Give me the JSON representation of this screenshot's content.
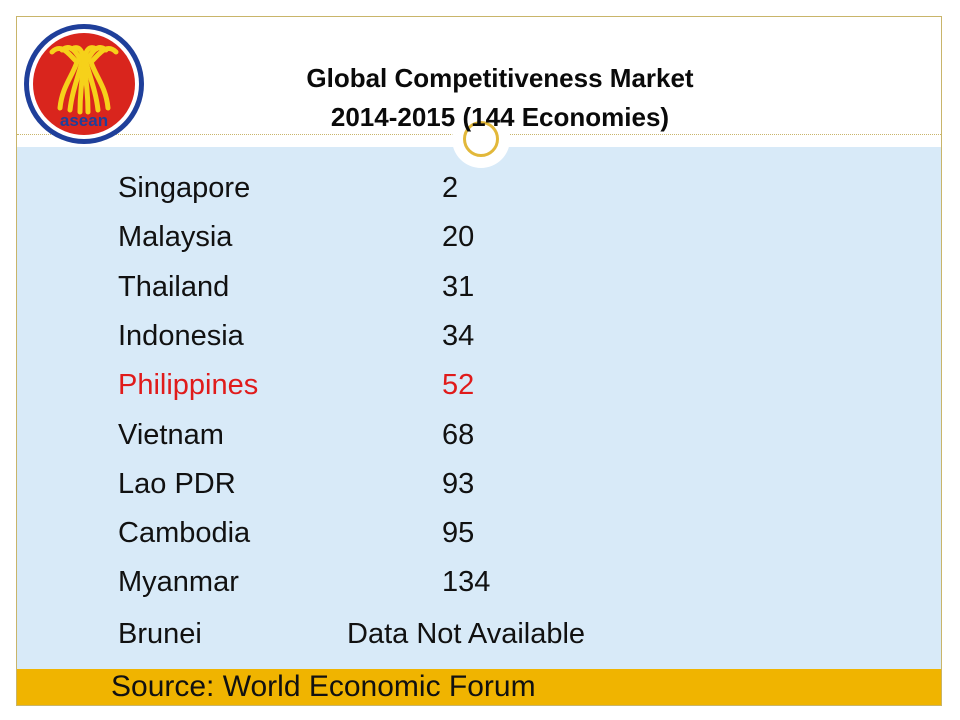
{
  "title": {
    "line1": "Global Competitiveness Market",
    "line2": "2014-2015   (144 Economies)"
  },
  "logo": {
    "text": "asean",
    "icon": "asean-logo"
  },
  "rankings": [
    {
      "country": "Singapore",
      "rank": "2",
      "highlight": false
    },
    {
      "country": "Malaysia",
      "rank": "20",
      "highlight": false
    },
    {
      "country": "Thailand",
      "rank": "31",
      "highlight": false
    },
    {
      "country": "Indonesia",
      "rank": "34",
      "highlight": false
    },
    {
      "country": "Philippines",
      "rank": "52",
      "highlight": true
    },
    {
      "country": "Vietnam",
      "rank": "68",
      "highlight": false
    },
    {
      "country": "Lao PDR",
      "rank": "93",
      "highlight": false
    },
    {
      "country": "Cambodia",
      "rank": "95",
      "highlight": false
    },
    {
      "country": "Myanmar",
      "rank": "134",
      "highlight": false
    }
  ],
  "brunei": {
    "country": "Brunei",
    "note": "Data Not Available"
  },
  "source": "Source:  World Economic Forum",
  "colors": {
    "highlight": "#e01b1b",
    "content_bg": "#d8eaf8",
    "footer_bg": "#f0b400",
    "logo_red": "#d9251d",
    "logo_blue": "#1f3f9a",
    "logo_yellow": "#f6d11a"
  }
}
